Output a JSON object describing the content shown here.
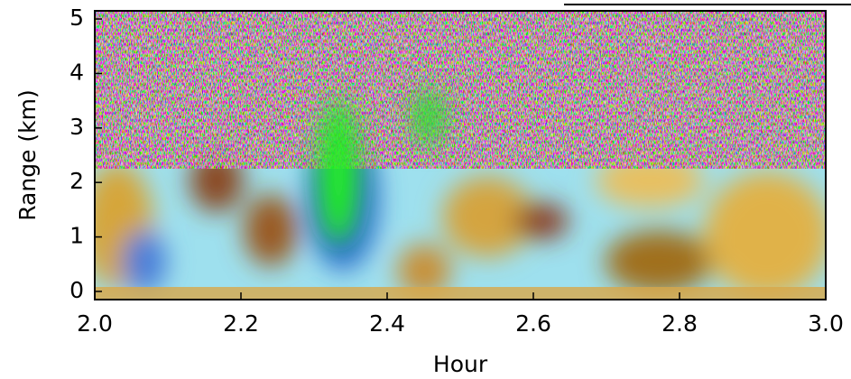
{
  "chart_data": {
    "type": "heatmap",
    "x_label": "Hour",
    "y_label": "Range (km)",
    "xlim": [
      2.0,
      3.0
    ],
    "xticks": [
      {
        "value": 2.0,
        "label": "2.0"
      },
      {
        "value": 2.2,
        "label": "2.2"
      },
      {
        "value": 2.4,
        "label": "2.4"
      },
      {
        "value": 2.6,
        "label": "2.6"
      },
      {
        "value": 2.8,
        "label": "2.8"
      },
      {
        "value": 3.0,
        "label": "3.0"
      }
    ],
    "ylim": [
      -0.15,
      5.15
    ],
    "yticks": [
      0,
      1,
      2,
      3,
      4,
      5
    ]
  }
}
